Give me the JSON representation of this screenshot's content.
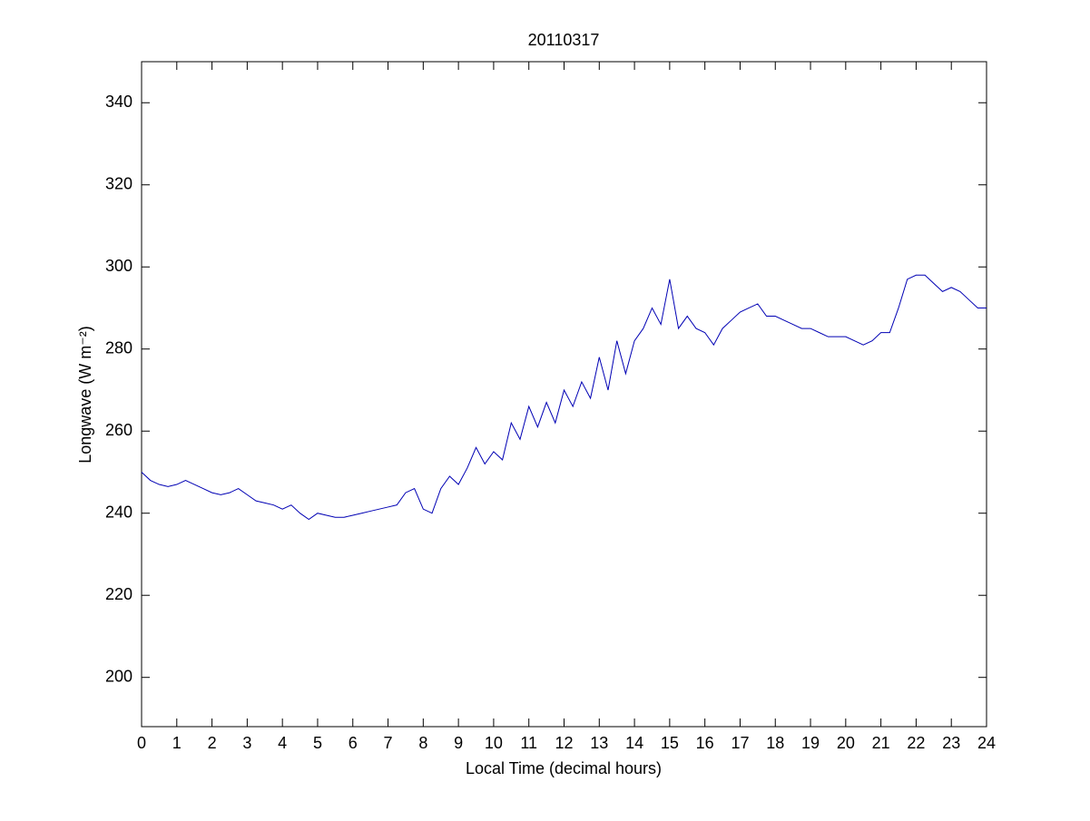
{
  "chart_data": {
    "type": "line",
    "title": "20110317",
    "x_label": "Local Time (decimal hours)",
    "y_label": "Longwave (W m⁻²)",
    "x": [
      0,
      0.25,
      0.5,
      0.75,
      1,
      1.25,
      1.5,
      1.75,
      2,
      2.25,
      2.5,
      2.75,
      3,
      3.25,
      3.5,
      3.75,
      4,
      4.25,
      4.5,
      4.75,
      5,
      5.25,
      5.5,
      5.75,
      6,
      6.25,
      6.5,
      6.75,
      7,
      7.25,
      7.5,
      7.75,
      8,
      8.25,
      8.5,
      8.75,
      9,
      9.25,
      9.5,
      9.75,
      10,
      10.25,
      10.5,
      10.75,
      11,
      11.25,
      11.5,
      11.75,
      12,
      12.25,
      12.5,
      12.75,
      13,
      13.25,
      13.5,
      13.75,
      14,
      14.25,
      14.5,
      14.75,
      15,
      15.25,
      15.5,
      15.75,
      16,
      16.25,
      16.5,
      16.75,
      17,
      17.25,
      17.5,
      17.75,
      18,
      18.25,
      18.5,
      18.75,
      19,
      19.25,
      19.5,
      19.75,
      20,
      20.25,
      20.5,
      20.75,
      21,
      21.25,
      21.5,
      21.75,
      22,
      22.25,
      22.5,
      22.75,
      23,
      23.25,
      23.5,
      23.75,
      24
    ],
    "series": [
      {
        "color": "#0000b4",
        "values": [
          250,
          248,
          247,
          246.5,
          247,
          248,
          247,
          246,
          245,
          244.5,
          245,
          246,
          244.5,
          243,
          242.5,
          242,
          241,
          242,
          240,
          238.5,
          240,
          239.5,
          239,
          239,
          239.5,
          240,
          240.5,
          241,
          241.5,
          242,
          245,
          246,
          241,
          240,
          246,
          249,
          247,
          251,
          256,
          252,
          255,
          253,
          262,
          258,
          266,
          261,
          267,
          262,
          270,
          266,
          272,
          268,
          278,
          270,
          282,
          274,
          282,
          285,
          290,
          286,
          297,
          285,
          288,
          285,
          284,
          281,
          285,
          287,
          289,
          290,
          291,
          288,
          288,
          287,
          286,
          285,
          285,
          284,
          283,
          283,
          283,
          282,
          281,
          282,
          284,
          284,
          290,
          297,
          298,
          298,
          296,
          294,
          295,
          294,
          292,
          290,
          290
        ]
      }
    ],
    "xlim": [
      0,
      24
    ],
    "ylim": [
      188,
      350
    ],
    "xticks": [
      0,
      1,
      2,
      3,
      4,
      5,
      6,
      7,
      8,
      9,
      10,
      11,
      12,
      13,
      14,
      15,
      16,
      17,
      18,
      19,
      20,
      21,
      22,
      23,
      24
    ],
    "yticks": [
      200,
      220,
      240,
      260,
      280,
      300,
      320,
      340
    ]
  }
}
